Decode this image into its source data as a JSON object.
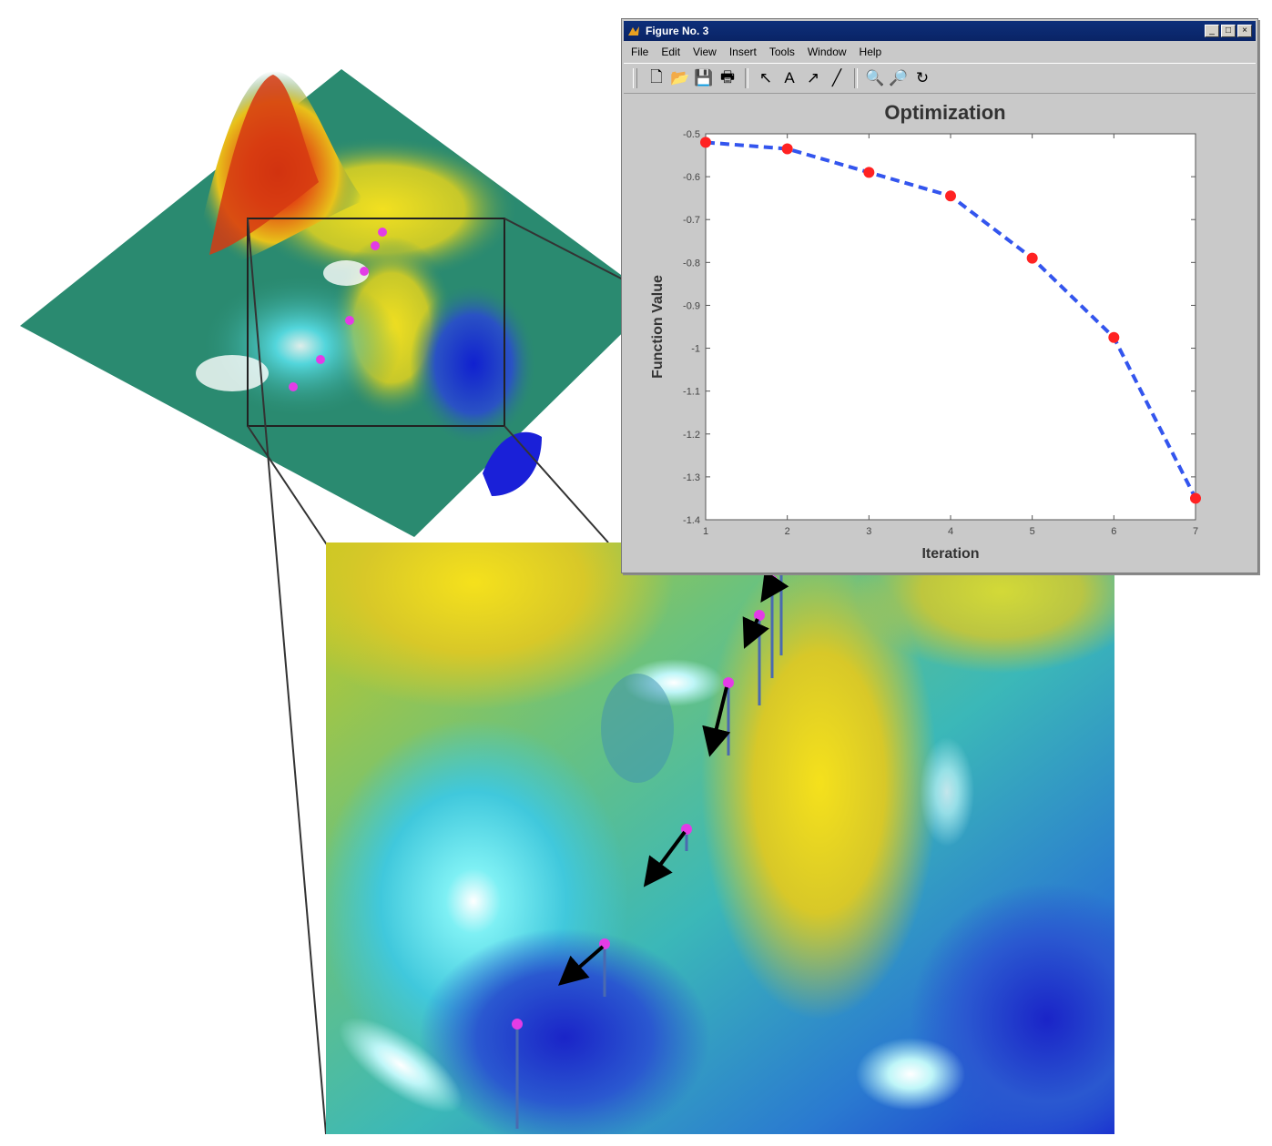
{
  "window": {
    "title": "Figure No. 3",
    "controls": [
      "_",
      "□",
      "×"
    ]
  },
  "menu": [
    "File",
    "Edit",
    "View",
    "Insert",
    "Tools",
    "Window",
    "Help"
  ],
  "toolbar": {
    "buttons": [
      {
        "name": "new-icon",
        "glyph": "🗋"
      },
      {
        "name": "open-icon",
        "glyph": "📂"
      },
      {
        "name": "save-icon",
        "glyph": "💾"
      },
      {
        "name": "print-icon",
        "glyph": "🖶"
      },
      {
        "name": "arrow-icon",
        "glyph": "↖"
      },
      {
        "name": "text-icon",
        "glyph": "A"
      },
      {
        "name": "arrow-draw-icon",
        "glyph": "↗"
      },
      {
        "name": "line-icon",
        "glyph": "╱"
      },
      {
        "name": "zoom-in-icon",
        "glyph": "🔍"
      },
      {
        "name": "zoom-out-icon",
        "glyph": "🔎"
      },
      {
        "name": "rotate-icon",
        "glyph": "↻"
      }
    ]
  },
  "chart_data": {
    "type": "line",
    "title": "Optimization",
    "xlabel": "Iteration",
    "ylabel": "Function Value",
    "x": [
      1,
      2,
      3,
      4,
      5,
      6,
      7
    ],
    "series": [
      {
        "values": [
          -0.52,
          -0.535,
          -0.59,
          -0.645,
          -0.79,
          -0.975,
          -1.35
        ],
        "color": "#3355ee",
        "marker_color": "#ff2222",
        "line_style": "dashed"
      }
    ],
    "xlim": [
      1,
      7
    ],
    "ylim": [
      -1.4,
      -0.5
    ],
    "xticks": [
      "1",
      "2",
      "3",
      "4",
      "5",
      "6",
      "7"
    ],
    "yticks": [
      "-0.5",
      "-0.6",
      "-0.7",
      "-0.8",
      "-0.9",
      "-1",
      "-1.1",
      "-1.2",
      "-1.3",
      "-1.4"
    ],
    "ytick_values": [
      -0.5,
      -0.6,
      -0.7,
      -0.8,
      -0.9,
      -1.0,
      -1.1,
      -1.2,
      -1.3,
      -1.4
    ],
    "grid": false
  },
  "colors": {
    "plane": "#2a8a70",
    "peak_red": "#d42a10",
    "surface_yellow": "#e6d21a",
    "surface_cyan": "#4fd9e6",
    "surface_blue": "#1a2fd4",
    "path_marker": "#e33ce6"
  }
}
